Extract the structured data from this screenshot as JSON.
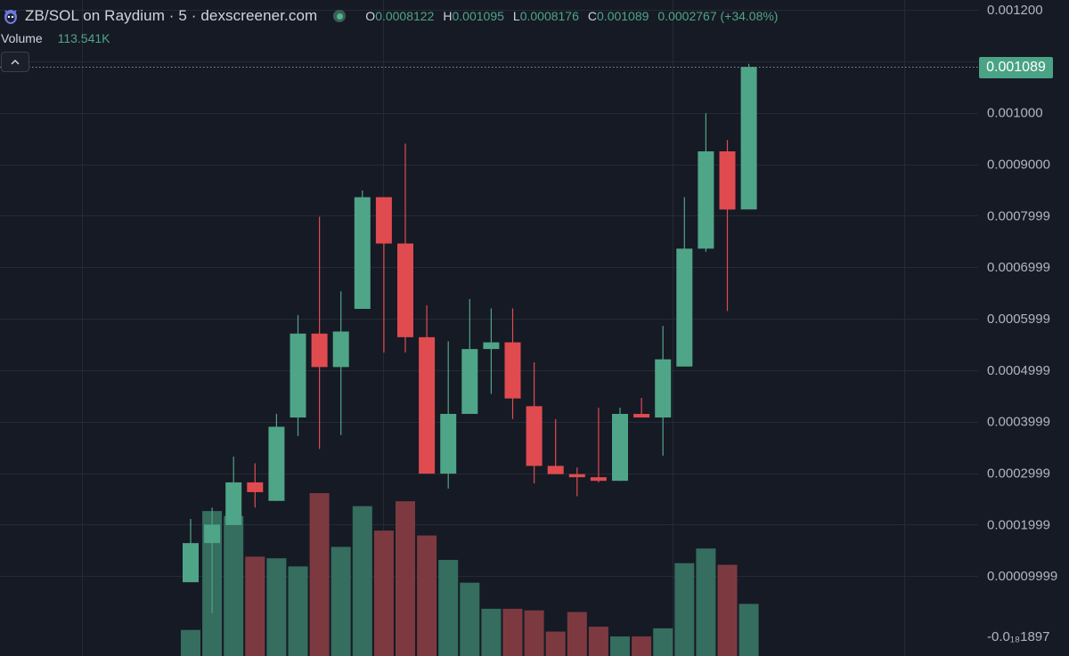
{
  "header": {
    "title": "ZB/SOL on Raydium · 5 · dexscreener.com",
    "ohlc": {
      "o_label": "O",
      "o_value": "0.0008122",
      "h_label": "H",
      "h_value": "0.001095",
      "l_label": "L",
      "l_value": "0.0008176",
      "c_label": "C",
      "c_value": "0.001089",
      "change": "0.0002767 (+34.08%)"
    },
    "volume_label": "Volume",
    "volume_value": "113.541K",
    "logo_icon": "mascot-logo-icon",
    "collapse_icon": "chevron-up-icon"
  },
  "last_price_label": "0.001089",
  "colors": {
    "background": "#161a25",
    "grid": "#262a35",
    "up": "#4fa587",
    "down": "#e04b4f",
    "up_volume": "#356d5e",
    "down_volume": "#7c3a40",
    "axis_text": "#b2b5be"
  },
  "chart_data": {
    "type": "candlestick",
    "y_axis_side": "right",
    "ylim": [
      -1.9e-05,
      0.0012
    ],
    "y_ticks": [
      0.0012,
      0.0011,
      0.001,
      0.0009,
      0.0008,
      0.0007,
      0.0006,
      0.0005,
      0.0004,
      0.0003,
      0.0002,
      0.0001,
      -1.8897e-05
    ],
    "y_tick_labels": [
      "0.001200",
      "0.0011??",
      "0.001000",
      "0.0009000",
      "0.0007999",
      "0.0006999",
      "0.0005999",
      "0.0004999",
      "0.0003999",
      "0.0002999",
      "0.0001999",
      "0.00009999",
      "-0.0₁₈1897"
    ],
    "grid": true,
    "last_price": 0.001089,
    "candles": [
      {
        "o": 8.8e-05,
        "h": 0.000211,
        "l": 8.8e-05,
        "c": 0.000164
      },
      {
        "o": 0.000164,
        "h": 0.000233,
        "l": 2.8e-05,
        "c": 0.0002
      },
      {
        "o": 0.000199,
        "h": 0.000332,
        "l": 0.0002,
        "c": 0.000282
      },
      {
        "o": 0.000282,
        "h": 0.000319,
        "l": 0.000233,
        "c": 0.000263
      },
      {
        "o": 0.000246,
        "h": 0.000415,
        "l": 0.000246,
        "c": 0.00039
      },
      {
        "o": 0.000408,
        "h": 0.000607,
        "l": 0.000372,
        "c": 0.000571
      },
      {
        "o": 0.000571,
        "h": 0.000798,
        "l": 0.000347,
        "c": 0.000506
      },
      {
        "o": 0.000506,
        "h": 0.000653,
        "l": 0.000374,
        "c": 0.000575
      },
      {
        "o": 0.000619,
        "h": 0.000849,
        "l": 0.000619,
        "c": 0.000836
      },
      {
        "o": 0.000836,
        "h": 0.000836,
        "l": 0.000534,
        "c": 0.000746
      },
      {
        "o": 0.000746,
        "h": 0.00094,
        "l": 0.000534,
        "c": 0.000564
      },
      {
        "o": 0.000564,
        "h": 0.000626,
        "l": 0.000299,
        "c": 0.000299
      },
      {
        "o": 0.000299,
        "h": 0.000556,
        "l": 0.00027,
        "c": 0.000415
      },
      {
        "o": 0.000415,
        "h": 0.000638,
        "l": 0.000415,
        "c": 0.000541
      },
      {
        "o": 0.000541,
        "h": 0.00062,
        "l": 0.000454,
        "c": 0.000554
      },
      {
        "o": 0.000554,
        "h": 0.00062,
        "l": 0.000405,
        "c": 0.000445
      },
      {
        "o": 0.00043,
        "h": 0.000515,
        "l": 0.00028,
        "c": 0.000314
      },
      {
        "o": 0.000314,
        "h": 0.000405,
        "l": 0.000298,
        "c": 0.000298
      },
      {
        "o": 0.000298,
        "h": 0.000311,
        "l": 0.000255,
        "c": 0.000292
      },
      {
        "o": 0.000292,
        "h": 0.000427,
        "l": 0.000282,
        "c": 0.000285
      },
      {
        "o": 0.000285,
        "h": 0.000427,
        "l": 0.000285,
        "c": 0.000415
      },
      {
        "o": 0.000415,
        "h": 0.000446,
        "l": 0.000408,
        "c": 0.000408
      },
      {
        "o": 0.000408,
        "h": 0.000586,
        "l": 0.000334,
        "c": 0.000521
      },
      {
        "o": 0.000507,
        "h": 0.000836,
        "l": 0.000507,
        "c": 0.000736
      },
      {
        "o": 0.000736,
        "h": 0.000999,
        "l": 0.00073,
        "c": 0.000925
      },
      {
        "o": 0.000925,
        "h": 0.000947,
        "l": 0.000615,
        "c": 0.000812
      },
      {
        "o": 0.0008122,
        "h": 0.001095,
        "l": 0.0008176,
        "c": 0.001089
      }
    ],
    "volume_levels": [
      0.16,
      0.89,
      0.86,
      0.61,
      0.6,
      0.55,
      1.0,
      0.67,
      0.92,
      0.77,
      0.95,
      0.74,
      0.59,
      0.45,
      0.29,
      0.29,
      0.28,
      0.15,
      0.27,
      0.18,
      0.12,
      0.12,
      0.17,
      0.57,
      0.66,
      0.56,
      0.32
    ]
  }
}
